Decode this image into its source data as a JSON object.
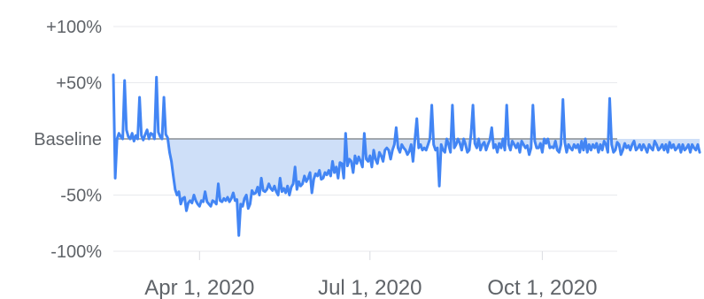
{
  "chart_data": {
    "type": "line",
    "title": "",
    "xlabel": "",
    "ylabel": "",
    "ylim": [
      -100,
      100
    ],
    "y_ticks": [
      {
        "value": 100,
        "label": "+100%"
      },
      {
        "value": 50,
        "label": "+50%"
      },
      {
        "value": 0,
        "label": "Baseline"
      },
      {
        "value": -50,
        "label": "-50%"
      },
      {
        "value": -100,
        "label": "-100%"
      }
    ],
    "x_range": [
      "2020-02-15",
      "2020-11-10"
    ],
    "x_ticks": [
      {
        "date": "2020-04-01",
        "label": "Apr 1, 2020"
      },
      {
        "date": "2020-07-01",
        "label": "Jul 1, 2020"
      },
      {
        "date": "2020-10-01",
        "label": "Oct 1, 2020"
      }
    ],
    "grid": true,
    "colors": {
      "line": "#4285f4",
      "fill_below_baseline": "#c6d9f7",
      "baseline": "#8a8f94"
    },
    "series": [
      {
        "start_date": "2020-02-15",
        "step_days": 1,
        "values": [
          57,
          -35,
          0,
          5,
          2,
          0,
          52,
          8,
          2,
          0,
          5,
          -2,
          3,
          0,
          37,
          3,
          -1,
          4,
          8,
          0,
          5,
          4,
          0,
          55,
          6,
          2,
          0,
          37,
          4,
          1,
          -12,
          -20,
          -33,
          -45,
          -50,
          -47,
          -58,
          -53,
          -52,
          -64,
          -57,
          -55,
          -57,
          -50,
          -55,
          -58,
          -60,
          -55,
          -56,
          -47,
          -56,
          -58,
          -60,
          -55,
          -56,
          -58,
          -40,
          -55,
          -56,
          -53,
          -55,
          -52,
          -56,
          -53,
          -48,
          -55,
          -54,
          -86,
          -58,
          -60,
          -53,
          -50,
          -62,
          -58,
          -46,
          -49,
          -48,
          -43,
          -50,
          -35,
          -46,
          -47,
          -45,
          -40,
          -44,
          -46,
          -42,
          -47,
          -50,
          -35,
          -47,
          -44,
          -48,
          -42,
          -50,
          -43,
          -40,
          -25,
          -45,
          -38,
          -42,
          -40,
          -33,
          -38,
          -35,
          -30,
          -48,
          -36,
          -31,
          -33,
          -28,
          -36,
          -35,
          -30,
          -32,
          -28,
          -33,
          -20,
          -30,
          -25,
          -35,
          -21,
          -22,
          -35,
          5,
          -24,
          -18,
          -20,
          -30,
          -15,
          -22,
          -16,
          -20,
          -25,
          5,
          -18,
          -20,
          -15,
          -25,
          -10,
          -18,
          -22,
          -12,
          -15,
          -20,
          -10,
          -8,
          -10,
          -18,
          -10,
          -5,
          10,
          -8,
          -12,
          -5,
          -8,
          -10,
          -14,
          -11,
          -5,
          -20,
          0,
          18,
          -8,
          -5,
          -10,
          -8,
          -10,
          -5,
          0,
          30,
          -5,
          -10,
          -8,
          -42,
          -5,
          -10,
          -12,
          0,
          -5,
          -12,
          30,
          -8,
          -5,
          0,
          -4,
          -10,
          0,
          -5,
          -12,
          -10,
          5,
          30,
          -4,
          -8,
          0,
          -10,
          -5,
          -3,
          -10,
          -5,
          -1,
          10,
          -8,
          -5,
          -12,
          -4,
          -8,
          0,
          -10,
          30,
          -5,
          -10,
          -2,
          -5,
          -8,
          -4,
          -12,
          -2,
          -5,
          -8,
          -6,
          -14,
          -8,
          30,
          -2,
          -8,
          -8,
          -4,
          -12,
          0,
          -4,
          0,
          -8,
          -7,
          -8,
          -2,
          -10,
          -12,
          -5,
          35,
          -3,
          -12,
          -5,
          -8,
          -10,
          -5,
          -8,
          -5,
          -12,
          -2,
          -10,
          0,
          -12,
          -5,
          -10,
          -5,
          -8,
          -4,
          -12,
          -5,
          -10,
          -2,
          -5,
          -12,
          36,
          -5,
          -12,
          -10,
          -3,
          -5,
          -14,
          -10,
          -4,
          -8,
          -6,
          -10,
          -5,
          -2,
          -10,
          -8,
          -5,
          -10,
          -5,
          -8,
          -12,
          -5,
          -8,
          -10,
          -2,
          -5,
          -10,
          -8,
          -5,
          -10,
          -5,
          -12,
          -3,
          -8,
          -5,
          -10,
          -8,
          -5,
          -12,
          -5,
          -10,
          -8,
          -5,
          -12,
          -5,
          -8,
          -10,
          -5,
          -12
        ]
      }
    ]
  }
}
